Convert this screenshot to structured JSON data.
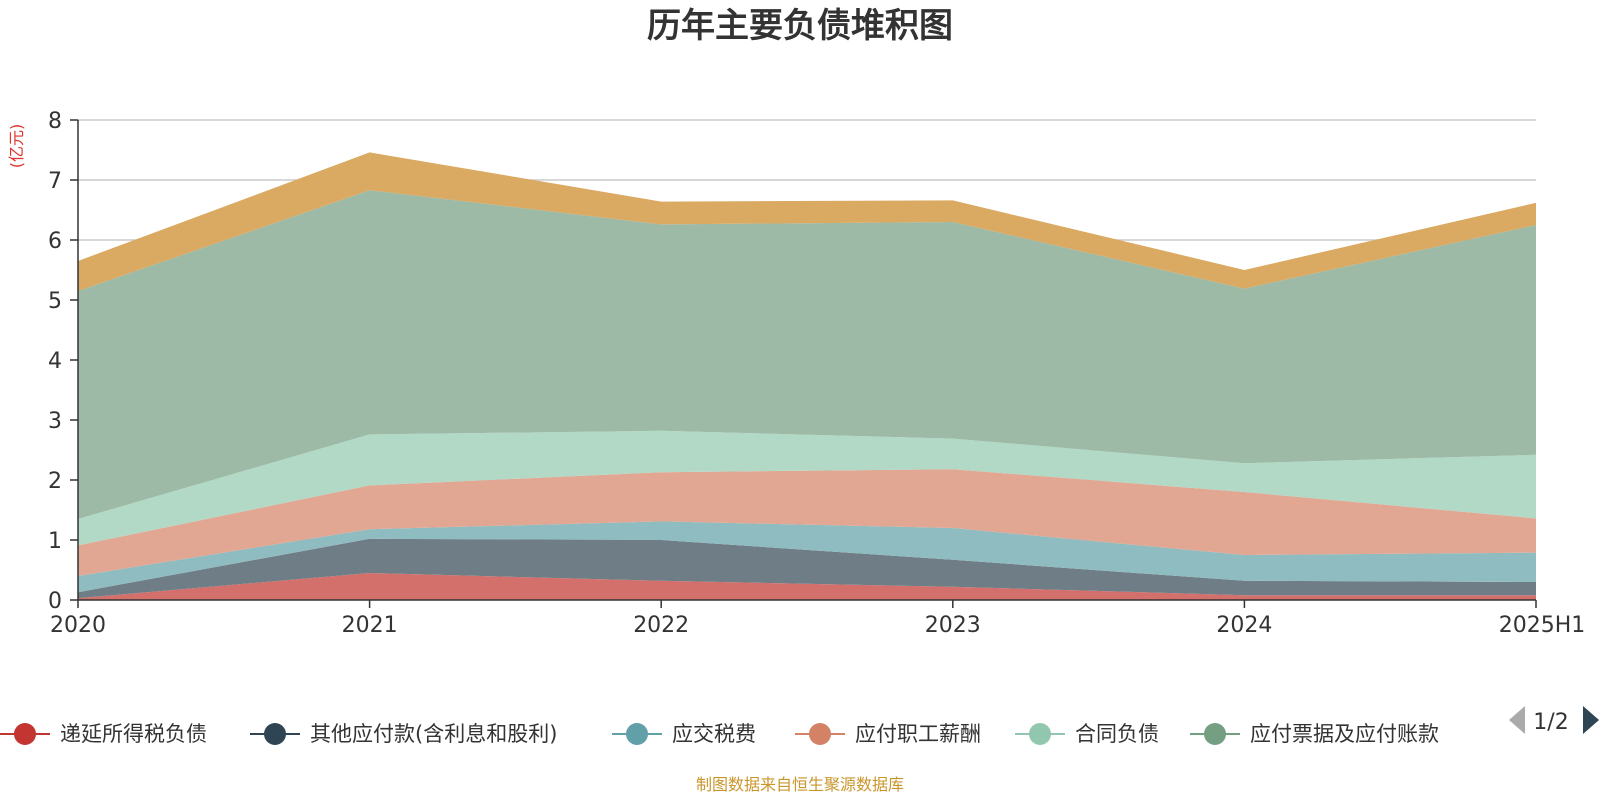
{
  "chart_data": {
    "type": "area",
    "stacked": true,
    "title": "历年主要负债堆积图",
    "unit_label": "(亿元)",
    "source": "制图数据来自恒生聚源数据库",
    "categories": [
      "2020",
      "2021",
      "2022",
      "2023",
      "2024",
      "2025H1"
    ],
    "ylim": [
      0,
      8
    ],
    "yticks": [
      0,
      1,
      2,
      3,
      4,
      5,
      6,
      7,
      8
    ],
    "grid": true,
    "legend_position": "bottom",
    "legend_page": "1/2",
    "series": [
      {
        "name": "递延所得税负债",
        "color": "#c23531",
        "fill": "#d4706b",
        "values": [
          0.03,
          0.45,
          0.32,
          0.22,
          0.08,
          0.08
        ]
      },
      {
        "name": "其他应付款(含利息和股利)",
        "color": "#2f4554",
        "fill": "#6f7d87",
        "values": [
          0.1,
          0.57,
          0.68,
          0.45,
          0.24,
          0.22
        ]
      },
      {
        "name": "应交税费",
        "color": "#61a0a8",
        "fill": "#8fbcc0",
        "values": [
          0.27,
          0.16,
          0.31,
          0.53,
          0.43,
          0.49
        ]
      },
      {
        "name": "应付职工薪酬",
        "color": "#d48265",
        "fill": "#e1a793",
        "values": [
          0.51,
          0.73,
          0.82,
          0.98,
          1.05,
          0.57
        ]
      },
      {
        "name": "合同负债",
        "color": "#91c7ae",
        "fill": "#b2d8c6",
        "values": [
          0.44,
          0.85,
          0.69,
          0.51,
          0.48,
          1.06
        ]
      },
      {
        "name": "应付票据及应付账款",
        "color": "#749f83",
        "fill": "#9dbaa6",
        "values": [
          3.8,
          4.07,
          3.44,
          3.61,
          2.91,
          3.83
        ]
      },
      {
        "name": "",
        "color": "#ca8622",
        "fill": "#daa962",
        "values": [
          0.5,
          0.63,
          0.38,
          0.36,
          0.31,
          0.37
        ]
      }
    ]
  }
}
